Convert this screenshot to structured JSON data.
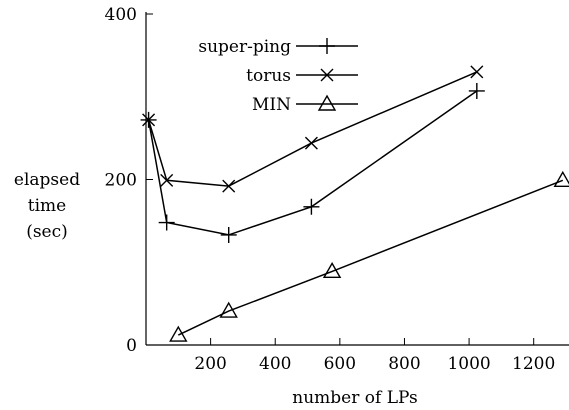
{
  "chart_data": {
    "type": "line",
    "xlabel": "number of LPs",
    "ylabel_lines": [
      "elapsed",
      "time",
      "(sec)"
    ],
    "xlim": [
      0,
      1300
    ],
    "ylim": [
      0,
      400
    ],
    "xticks": [
      200,
      400,
      600,
      800,
      1000,
      1200
    ],
    "yticks": [
      0,
      200,
      400
    ],
    "legend_position": "top-left",
    "grid": false,
    "series": [
      {
        "name": "super-ping",
        "marker": "plus",
        "points": [
          [
            8,
            272
          ],
          [
            64,
            148
          ],
          [
            256,
            133
          ],
          [
            512,
            167
          ],
          [
            1024,
            307
          ]
        ]
      },
      {
        "name": "torus",
        "marker": "cross",
        "points": [
          [
            8,
            272
          ],
          [
            64,
            199
          ],
          [
            256,
            192
          ],
          [
            512,
            244
          ],
          [
            1024,
            330
          ]
        ]
      },
      {
        "name": "MIN",
        "marker": "triangle",
        "points": [
          [
            100,
            12
          ],
          [
            256,
            41
          ],
          [
            576,
            89
          ],
          [
            1290,
            199
          ]
        ]
      }
    ]
  }
}
